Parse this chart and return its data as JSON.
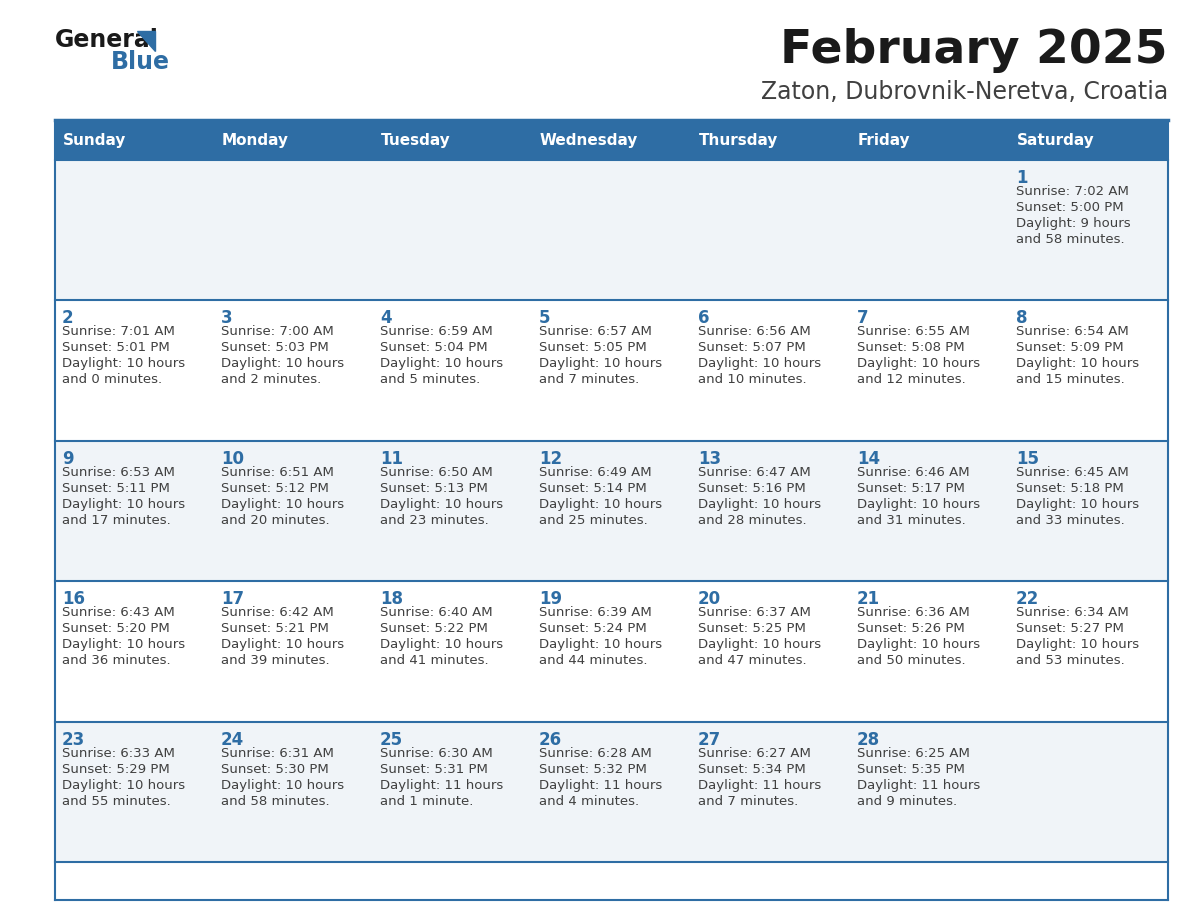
{
  "title": "February 2025",
  "subtitle": "Zaton, Dubrovnik-Neretva, Croatia",
  "days_of_week": [
    "Sunday",
    "Monday",
    "Tuesday",
    "Wednesday",
    "Thursday",
    "Friday",
    "Saturday"
  ],
  "header_bg": "#2E6DA4",
  "header_text": "#FFFFFF",
  "cell_bg_odd": "#F0F4F8",
  "cell_bg_even": "#FFFFFF",
  "border_color": "#2E6DA4",
  "day_num_color": "#2E6DA4",
  "text_color": "#404040",
  "logo_text_color": "#1a1a1a",
  "logo_blue_color": "#2E6DA4",
  "title_color": "#1a1a1a",
  "subtitle_color": "#404040",
  "calendar_data": [
    [
      null,
      null,
      null,
      null,
      null,
      null,
      {
        "day": "1",
        "sunrise": "7:02 AM",
        "sunset": "5:00 PM",
        "daylight": "9 hours",
        "daylight2": "and 58 minutes."
      }
    ],
    [
      {
        "day": "2",
        "sunrise": "7:01 AM",
        "sunset": "5:01 PM",
        "daylight": "10 hours",
        "daylight2": "and 0 minutes."
      },
      {
        "day": "3",
        "sunrise": "7:00 AM",
        "sunset": "5:03 PM",
        "daylight": "10 hours",
        "daylight2": "and 2 minutes."
      },
      {
        "day": "4",
        "sunrise": "6:59 AM",
        "sunset": "5:04 PM",
        "daylight": "10 hours",
        "daylight2": "and 5 minutes."
      },
      {
        "day": "5",
        "sunrise": "6:57 AM",
        "sunset": "5:05 PM",
        "daylight": "10 hours",
        "daylight2": "and 7 minutes."
      },
      {
        "day": "6",
        "sunrise": "6:56 AM",
        "sunset": "5:07 PM",
        "daylight": "10 hours",
        "daylight2": "and 10 minutes."
      },
      {
        "day": "7",
        "sunrise": "6:55 AM",
        "sunset": "5:08 PM",
        "daylight": "10 hours",
        "daylight2": "and 12 minutes."
      },
      {
        "day": "8",
        "sunrise": "6:54 AM",
        "sunset": "5:09 PM",
        "daylight": "10 hours",
        "daylight2": "and 15 minutes."
      }
    ],
    [
      {
        "day": "9",
        "sunrise": "6:53 AM",
        "sunset": "5:11 PM",
        "daylight": "10 hours",
        "daylight2": "and 17 minutes."
      },
      {
        "day": "10",
        "sunrise": "6:51 AM",
        "sunset": "5:12 PM",
        "daylight": "10 hours",
        "daylight2": "and 20 minutes."
      },
      {
        "day": "11",
        "sunrise": "6:50 AM",
        "sunset": "5:13 PM",
        "daylight": "10 hours",
        "daylight2": "and 23 minutes."
      },
      {
        "day": "12",
        "sunrise": "6:49 AM",
        "sunset": "5:14 PM",
        "daylight": "10 hours",
        "daylight2": "and 25 minutes."
      },
      {
        "day": "13",
        "sunrise": "6:47 AM",
        "sunset": "5:16 PM",
        "daylight": "10 hours",
        "daylight2": "and 28 minutes."
      },
      {
        "day": "14",
        "sunrise": "6:46 AM",
        "sunset": "5:17 PM",
        "daylight": "10 hours",
        "daylight2": "and 31 minutes."
      },
      {
        "day": "15",
        "sunrise": "6:45 AM",
        "sunset": "5:18 PM",
        "daylight": "10 hours",
        "daylight2": "and 33 minutes."
      }
    ],
    [
      {
        "day": "16",
        "sunrise": "6:43 AM",
        "sunset": "5:20 PM",
        "daylight": "10 hours",
        "daylight2": "and 36 minutes."
      },
      {
        "day": "17",
        "sunrise": "6:42 AM",
        "sunset": "5:21 PM",
        "daylight": "10 hours",
        "daylight2": "and 39 minutes."
      },
      {
        "day": "18",
        "sunrise": "6:40 AM",
        "sunset": "5:22 PM",
        "daylight": "10 hours",
        "daylight2": "and 41 minutes."
      },
      {
        "day": "19",
        "sunrise": "6:39 AM",
        "sunset": "5:24 PM",
        "daylight": "10 hours",
        "daylight2": "and 44 minutes."
      },
      {
        "day": "20",
        "sunrise": "6:37 AM",
        "sunset": "5:25 PM",
        "daylight": "10 hours",
        "daylight2": "and 47 minutes."
      },
      {
        "day": "21",
        "sunrise": "6:36 AM",
        "sunset": "5:26 PM",
        "daylight": "10 hours",
        "daylight2": "and 50 minutes."
      },
      {
        "day": "22",
        "sunrise": "6:34 AM",
        "sunset": "5:27 PM",
        "daylight": "10 hours",
        "daylight2": "and 53 minutes."
      }
    ],
    [
      {
        "day": "23",
        "sunrise": "6:33 AM",
        "sunset": "5:29 PM",
        "daylight": "10 hours",
        "daylight2": "and 55 minutes."
      },
      {
        "day": "24",
        "sunrise": "6:31 AM",
        "sunset": "5:30 PM",
        "daylight": "10 hours",
        "daylight2": "and 58 minutes."
      },
      {
        "day": "25",
        "sunrise": "6:30 AM",
        "sunset": "5:31 PM",
        "daylight": "11 hours",
        "daylight2": "and 1 minute."
      },
      {
        "day": "26",
        "sunrise": "6:28 AM",
        "sunset": "5:32 PM",
        "daylight": "11 hours",
        "daylight2": "and 4 minutes."
      },
      {
        "day": "27",
        "sunrise": "6:27 AM",
        "sunset": "5:34 PM",
        "daylight": "11 hours",
        "daylight2": "and 7 minutes."
      },
      {
        "day": "28",
        "sunrise": "6:25 AM",
        "sunset": "5:35 PM",
        "daylight": "11 hours",
        "daylight2": "and 9 minutes."
      },
      null
    ]
  ],
  "num_rows": 5,
  "num_cols": 7,
  "figw": 11.88,
  "figh": 9.18,
  "dpi": 100
}
